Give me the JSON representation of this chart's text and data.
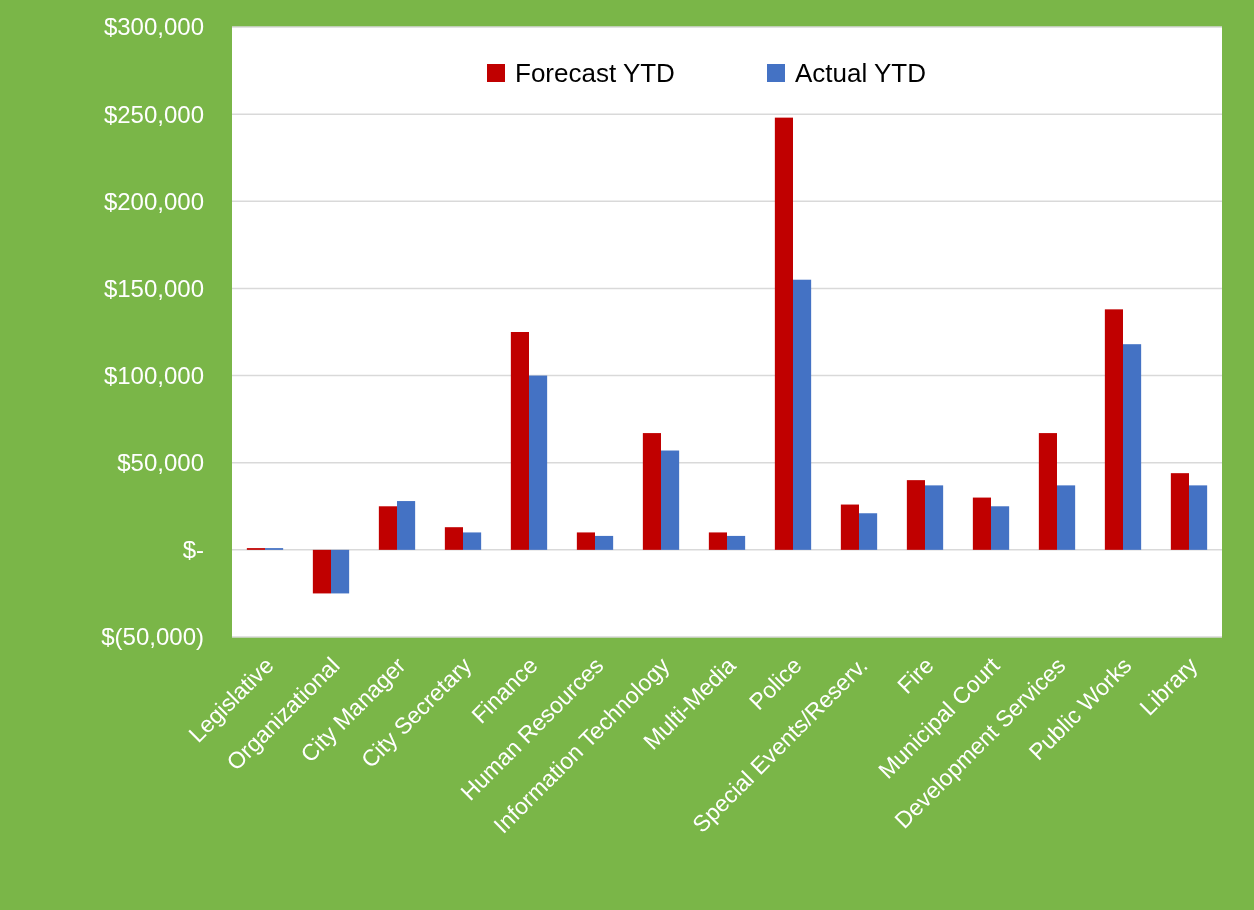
{
  "chart_data": {
    "type": "bar",
    "categories": [
      "Legislative",
      "Organizational",
      "City Manager",
      "City Secretary",
      "Finance",
      "Human Resources",
      "Information Technology",
      "Multi-Media",
      "Police",
      "Special Events/Reserv.",
      "Fire",
      "Municipal Court",
      "Development Services",
      "Public Works",
      "Library"
    ],
    "series": [
      {
        "name": "Forecast YTD",
        "color": "#c00000",
        "values": [
          1000,
          -25000,
          25000,
          13000,
          125000,
          10000,
          67000,
          10000,
          248000,
          26000,
          40000,
          30000,
          67000,
          138000,
          44000
        ]
      },
      {
        "name": "Actual YTD",
        "color": "#4472c4",
        "values": [
          1000,
          -25000,
          28000,
          10000,
          100000,
          8000,
          57000,
          8000,
          155000,
          21000,
          37000,
          25000,
          37000,
          118000,
          37000
        ]
      }
    ],
    "ylim": [
      -50000,
      300000
    ],
    "yticks": [
      {
        "value": -50000,
        "label": "$(50,000)"
      },
      {
        "value": 0,
        "label": "$-"
      },
      {
        "value": 50000,
        "label": "$50,000"
      },
      {
        "value": 100000,
        "label": "$100,000"
      },
      {
        "value": 150000,
        "label": "$150,000"
      },
      {
        "value": 200000,
        "label": "$200,000"
      },
      {
        "value": 250000,
        "label": "$250,000"
      },
      {
        "value": 300000,
        "label": "$300,000"
      }
    ],
    "grid": "y",
    "legend": "top"
  }
}
